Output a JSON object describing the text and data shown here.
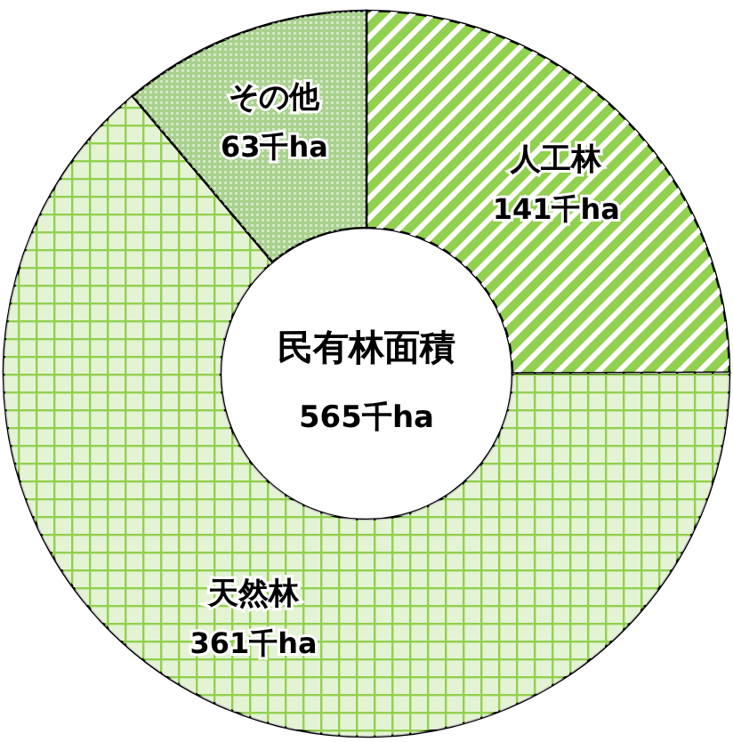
{
  "chart_data": {
    "type": "donut",
    "title": "民有林面積",
    "annotations": [
      "565千ha"
    ],
    "categories": [
      "人工林",
      "天然林",
      "その他"
    ],
    "values": [
      141,
      361,
      63
    ],
    "value_labels": [
      "141千ha",
      "361千ha",
      "63千ha"
    ],
    "colors": [
      "#92d050",
      "#92d050",
      "#a9d18e"
    ]
  }
}
